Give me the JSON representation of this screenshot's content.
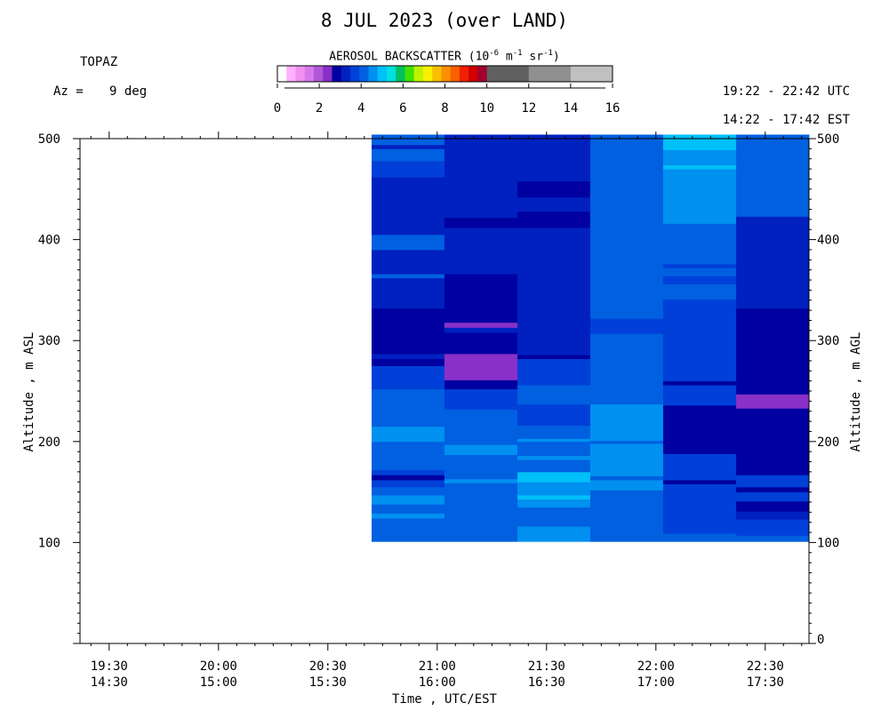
{
  "header": {
    "title": "8 JUL 2023 (over LAND)",
    "instrument": "TOPAZ",
    "az_label": "Az =",
    "az_value": "9 deg",
    "utc_range": "19:22 - 22:42 UTC",
    "est_range": "14:22 - 17:42 EST"
  },
  "colorbar": {
    "title_main": "AEROSOL BACKSCATTER (10",
    "title_exp1": "-6",
    "title_mid1": " m",
    "title_exp2": "-1",
    "title_mid2": " sr",
    "title_exp3": "-1",
    "title_end": ")",
    "ticks": [
      0,
      2,
      4,
      6,
      8,
      10,
      12,
      14,
      16
    ],
    "colors": [
      "#ffffff",
      "#ffb0ff",
      "#f090f0",
      "#d878e8",
      "#b058d8",
      "#8830c8",
      "#0000a0",
      "#0020c0",
      "#0040d8",
      "#0060e0",
      "#0090f0",
      "#00c0f8",
      "#00e0e0",
      "#00c060",
      "#40e000",
      "#c0f000",
      "#f8f000",
      "#f8c000",
      "#f89000",
      "#f86000",
      "#f02000",
      "#d00000",
      "#a00030",
      "#606060",
      "#606060",
      "#909090",
      "#909090",
      "#c0c0c0",
      "#c0c0c0",
      "#c0c0c0",
      "#c0c0c0"
    ]
  },
  "chart_data": {
    "type": "heatmap",
    "title": "8 JUL 2023 (over LAND)",
    "xlabel": "Time , UTC/EST",
    "ylabel_left": "Altitude , m ASL",
    "ylabel_right": "Altitude , m AGL",
    "x_domain_utc_hours": [
      19.3667,
      22.7
    ],
    "ylim_asl": [
      0,
      500
    ],
    "agl_offset_m": 0,
    "x_ticks": [
      {
        "h": 19.5,
        "utc": "19:30",
        "est": "14:30"
      },
      {
        "h": 20.0,
        "utc": "20:00",
        "est": "15:00"
      },
      {
        "h": 20.5,
        "utc": "20:30",
        "est": "15:30"
      },
      {
        "h": 21.0,
        "utc": "21:00",
        "est": "16:00"
      },
      {
        "h": 21.5,
        "utc": "21:30",
        "est": "16:30"
      },
      {
        "h": 22.0,
        "utc": "22:00",
        "est": "17:00"
      },
      {
        "h": 22.5,
        "utc": "22:30",
        "est": "17:30"
      }
    ],
    "y_ticks_left": [
      100,
      200,
      300,
      400,
      500
    ],
    "y_ticks_right": [
      0,
      100,
      200,
      300,
      400,
      500
    ],
    "grid": false,
    "columns": [
      {
        "t0": 20.7,
        "t1": 21.033,
        "cells": [
          [
            101,
            124,
            "#0060e0"
          ],
          [
            124,
            129,
            "#0090f0"
          ],
          [
            129,
            138,
            "#0060e0"
          ],
          [
            138,
            147,
            "#0090f0"
          ],
          [
            147,
            155,
            "#0060e0"
          ],
          [
            155,
            162,
            "#0040d8"
          ],
          [
            162,
            167,
            "#0000a0"
          ],
          [
            167,
            172,
            "#0040d8"
          ],
          [
            172,
            200,
            "#0060e0"
          ],
          [
            200,
            215,
            "#0090f0"
          ],
          [
            215,
            252,
            "#0060e0"
          ],
          [
            252,
            275,
            "#0040d8"
          ],
          [
            275,
            282,
            "#0000a0"
          ],
          [
            282,
            287,
            "#0020c0"
          ],
          [
            287,
            332,
            "#0000a0"
          ],
          [
            332,
            362,
            "#0020c0"
          ],
          [
            362,
            366,
            "#0060e0"
          ],
          [
            366,
            390,
            "#0020c0"
          ],
          [
            390,
            405,
            "#0060e0"
          ],
          [
            405,
            462,
            "#0020c0"
          ],
          [
            462,
            478,
            "#0040d8"
          ],
          [
            478,
            490,
            "#0060e0"
          ],
          [
            490,
            494,
            "#0020c0"
          ],
          [
            494,
            504,
            "#0060e0"
          ]
        ]
      },
      {
        "t0": 21.033,
        "t1": 21.367,
        "cells": [
          [
            101,
            159,
            "#0060e0"
          ],
          [
            159,
            163,
            "#0090f0"
          ],
          [
            163,
            187,
            "#0060e0"
          ],
          [
            187,
            197,
            "#0090f0"
          ],
          [
            197,
            232,
            "#0060e0"
          ],
          [
            232,
            252,
            "#0040d8"
          ],
          [
            252,
            261,
            "#0000a0"
          ],
          [
            261,
            287,
            "#8830c8"
          ],
          [
            287,
            308,
            "#0000a0"
          ],
          [
            308,
            313,
            "#0020c0"
          ],
          [
            313,
            318,
            "#8830c8"
          ],
          [
            318,
            366,
            "#0000a0"
          ],
          [
            366,
            412,
            "#0020c0"
          ],
          [
            412,
            422,
            "#0000a0"
          ],
          [
            422,
            504,
            "#0020c0"
          ]
        ]
      },
      {
        "t0": 21.367,
        "t1": 21.7,
        "cells": [
          [
            101,
            116,
            "#0090f0"
          ],
          [
            116,
            135,
            "#0060e0"
          ],
          [
            135,
            143,
            "#0090f0"
          ],
          [
            143,
            147,
            "#00c0f8"
          ],
          [
            147,
            160,
            "#0090f0"
          ],
          [
            160,
            170,
            "#00c0f8"
          ],
          [
            170,
            182,
            "#0060e0"
          ],
          [
            182,
            186,
            "#0090f0"
          ],
          [
            186,
            200,
            "#0060e0"
          ],
          [
            200,
            203,
            "#0090f0"
          ],
          [
            203,
            216,
            "#0060e0"
          ],
          [
            216,
            237,
            "#0040d8"
          ],
          [
            237,
            256,
            "#0060e0"
          ],
          [
            256,
            282,
            "#0040d8"
          ],
          [
            282,
            286,
            "#0000a0"
          ],
          [
            286,
            294,
            "#0020c0"
          ],
          [
            294,
            412,
            "#0020c0"
          ],
          [
            412,
            428,
            "#0000a0"
          ],
          [
            428,
            442,
            "#0020c0"
          ],
          [
            442,
            458,
            "#0000a0"
          ],
          [
            458,
            504,
            "#0020c0"
          ]
        ]
      },
      {
        "t0": 21.7,
        "t1": 22.033,
        "cells": [
          [
            101,
            152,
            "#0060e0"
          ],
          [
            152,
            162,
            "#0090f0"
          ],
          [
            162,
            166,
            "#0060e0"
          ],
          [
            166,
            184,
            "#0090f0"
          ],
          [
            184,
            198,
            "#0090f0"
          ],
          [
            198,
            201,
            "#0060e0"
          ],
          [
            201,
            216,
            "#0090f0"
          ],
          [
            216,
            237,
            "#0090f0"
          ],
          [
            237,
            307,
            "#0060e0"
          ],
          [
            307,
            322,
            "#0040d8"
          ],
          [
            322,
            504,
            "#0060e0"
          ]
        ]
      },
      {
        "t0": 22.033,
        "t1": 22.367,
        "cells": [
          [
            101,
            109,
            "#0060e0"
          ],
          [
            109,
            158,
            "#0040d8"
          ],
          [
            158,
            162,
            "#0000a0"
          ],
          [
            162,
            188,
            "#0040d8"
          ],
          [
            188,
            236,
            "#0000a0"
          ],
          [
            236,
            256,
            "#0040d8"
          ],
          [
            256,
            260,
            "#0000a0"
          ],
          [
            260,
            341,
            "#0040d8"
          ],
          [
            341,
            356,
            "#0060e0"
          ],
          [
            356,
            364,
            "#0040d8"
          ],
          [
            364,
            372,
            "#0060e0"
          ],
          [
            372,
            376,
            "#0040d8"
          ],
          [
            376,
            416,
            "#0060e0"
          ],
          [
            416,
            470,
            "#0090f0"
          ],
          [
            470,
            474,
            "#00c0f8"
          ],
          [
            474,
            489,
            "#0090f0"
          ],
          [
            489,
            504,
            "#00c0f8"
          ]
        ]
      },
      {
        "t0": 22.367,
        "t1": 22.7,
        "cells": [
          [
            101,
            107,
            "#0060e0"
          ],
          [
            107,
            123,
            "#0040d8"
          ],
          [
            123,
            131,
            "#0020c0"
          ],
          [
            131,
            141,
            "#0000a0"
          ],
          [
            141,
            150,
            "#0040d8"
          ],
          [
            150,
            155,
            "#0000a0"
          ],
          [
            155,
            167,
            "#0040d8"
          ],
          [
            167,
            233,
            "#0000a0"
          ],
          [
            233,
            247,
            "#8830c8"
          ],
          [
            247,
            332,
            "#0000a0"
          ],
          [
            332,
            423,
            "#0020c0"
          ],
          [
            423,
            504,
            "#0060e0"
          ]
        ]
      }
    ]
  }
}
